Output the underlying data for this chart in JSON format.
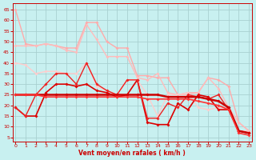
{
  "xlabel": "Vent moyen/en rafales ( km/h )",
  "bg_color": "#c8f0f0",
  "grid_color": "#a8d0d0",
  "x_ticks": [
    0,
    1,
    2,
    3,
    4,
    5,
    6,
    7,
    8,
    9,
    10,
    11,
    12,
    13,
    14,
    15,
    16,
    17,
    18,
    19,
    20,
    21,
    22,
    23
  ],
  "y_ticks": [
    5,
    10,
    15,
    20,
    25,
    30,
    35,
    40,
    45,
    50,
    55,
    60,
    65
  ],
  "ylim": [
    3,
    68
  ],
  "xlim": [
    -0.3,
    23.3
  ],
  "series": [
    {
      "x": [
        0,
        1,
        2,
        3,
        4,
        5,
        6,
        7,
        8,
        9,
        10,
        11,
        12,
        13,
        14,
        15,
        16,
        17,
        18,
        19,
        20,
        21,
        22,
        23
      ],
      "y": [
        65,
        49,
        48,
        49,
        48,
        47,
        47,
        59,
        59,
        50,
        47,
        47,
        34,
        34,
        33,
        33,
        25,
        26,
        26,
        33,
        32,
        29,
        12,
        8
      ],
      "color": "#ffaaaa",
      "lw": 1.0,
      "marker": "D",
      "ms": 2.0
    },
    {
      "x": [
        0,
        1,
        2,
        3,
        4,
        5,
        6,
        7,
        8,
        9,
        10,
        11,
        12,
        13,
        14,
        15,
        16,
        17,
        18,
        19,
        20,
        21,
        22,
        23
      ],
      "y": [
        48,
        48,
        48,
        49,
        48,
        46,
        45,
        58,
        51,
        43,
        43,
        43,
        33,
        32,
        35,
        26,
        25,
        25,
        26,
        33,
        28,
        19,
        12,
        8
      ],
      "color": "#ffbbbb",
      "lw": 1.0,
      "marker": "D",
      "ms": 2.0
    },
    {
      "x": [
        0,
        1,
        2,
        3,
        4,
        5,
        6,
        7,
        8,
        9,
        10,
        11,
        12,
        13,
        14,
        15,
        16,
        17,
        18,
        19,
        20,
        21,
        22,
        23
      ],
      "y": [
        40,
        39,
        35,
        36,
        36,
        35,
        35,
        40,
        29,
        27,
        25,
        32,
        32,
        25,
        15,
        25,
        25,
        26,
        19,
        18,
        19,
        18,
        8,
        8
      ],
      "color": "#ffcccc",
      "lw": 1.0,
      "marker": "D",
      "ms": 2.0
    },
    {
      "x": [
        0,
        1,
        2,
        3,
        4,
        5,
        6,
        7,
        8,
        9,
        10,
        11,
        12,
        13,
        14,
        15,
        16,
        17,
        18,
        19,
        20,
        21,
        22,
        23
      ],
      "y": [
        19,
        15,
        15,
        26,
        30,
        30,
        29,
        30,
        27,
        26,
        24,
        25,
        32,
        12,
        11,
        11,
        21,
        18,
        25,
        24,
        18,
        18,
        8,
        7
      ],
      "color": "#dd0000",
      "lw": 1.2,
      "marker": "D",
      "ms": 2.0
    },
    {
      "x": [
        0,
        1,
        2,
        3,
        4,
        5,
        6,
        7,
        8,
        9,
        10,
        11,
        12,
        13,
        14,
        15,
        16,
        17,
        18,
        19,
        20,
        21,
        22,
        23
      ],
      "y": [
        19,
        15,
        25,
        30,
        35,
        35,
        30,
        40,
        30,
        27,
        25,
        32,
        32,
        14,
        14,
        21,
        19,
        25,
        24,
        23,
        25,
        18,
        8,
        7
      ],
      "color": "#ee2222",
      "lw": 1.0,
      "marker": "D",
      "ms": 2.0
    },
    {
      "x": [
        0,
        1,
        2,
        3,
        4,
        5,
        6,
        7,
        8,
        9,
        10,
        11,
        12,
        13,
        14,
        15,
        16,
        17,
        18,
        19,
        20,
        21,
        22,
        23
      ],
      "y": [
        25,
        25,
        25,
        25,
        25,
        25,
        25,
        25,
        25,
        25,
        25,
        25,
        25,
        25,
        25,
        24,
        24,
        24,
        24,
        23,
        22,
        19,
        8,
        7
      ],
      "color": "#cc0000",
      "lw": 1.8,
      "marker": "D",
      "ms": 2.0
    },
    {
      "x": [
        0,
        1,
        2,
        3,
        4,
        5,
        6,
        7,
        8,
        9,
        10,
        11,
        12,
        13,
        14,
        15,
        16,
        17,
        18,
        19,
        20,
        21,
        22,
        23
      ],
      "y": [
        25,
        25,
        25,
        24,
        24,
        24,
        24,
        24,
        24,
        24,
        24,
        24,
        24,
        23,
        23,
        23,
        23,
        23,
        22,
        21,
        20,
        18,
        7,
        6
      ],
      "color": "#ff3333",
      "lw": 1.2,
      "marker": "D",
      "ms": 2.0
    }
  ]
}
